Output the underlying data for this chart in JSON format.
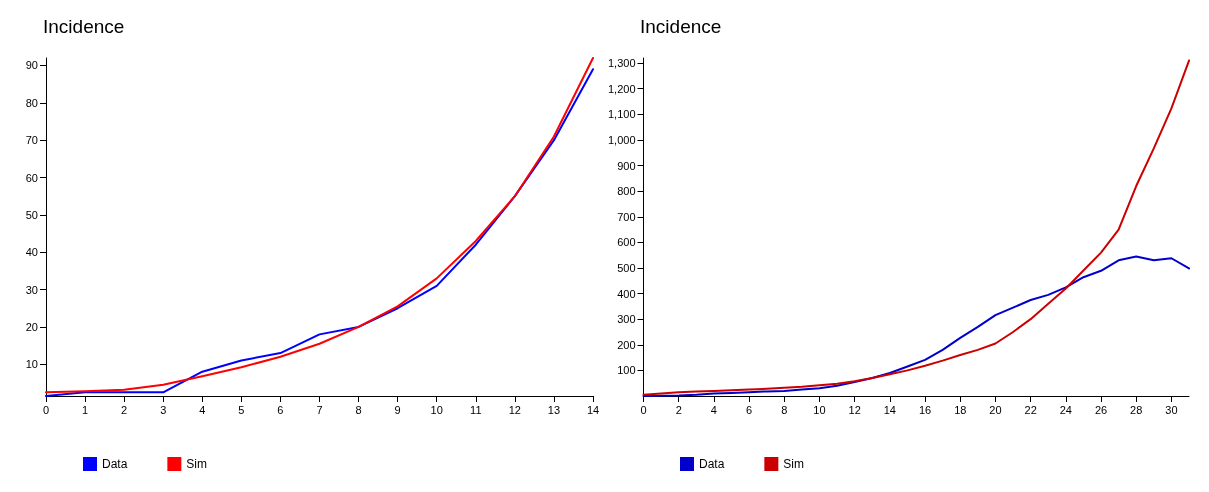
{
  "chart_data": [
    {
      "type": "line",
      "title": "Incidence",
      "x": [
        0,
        1,
        2,
        3,
        4,
        5,
        6,
        7,
        8,
        9,
        10,
        11,
        12,
        13,
        14
      ],
      "xlim": [
        0,
        14
      ],
      "xticks": [
        0,
        1,
        2,
        3,
        4,
        5,
        6,
        7,
        8,
        9,
        10,
        11,
        12,
        13,
        14
      ],
      "ylim": [
        1.5,
        92
      ],
      "yticks": [
        10,
        20,
        30,
        40,
        50,
        60,
        70,
        80,
        90
      ],
      "grid": false,
      "legend": "bottom left",
      "marker": "none",
      "line_style": "solid",
      "series": [
        {
          "name": "Data",
          "color": "#0000ff",
          "values": [
            1.5,
            2.5,
            2.5,
            2.5,
            8,
            11,
            13,
            18,
            20,
            25,
            31,
            42,
            55,
            70,
            89
          ]
        },
        {
          "name": "Sim",
          "color": "#ff0000",
          "values": [
            2.5,
            2.8,
            3.2,
            4.5,
            6.8,
            9.2,
            12,
            15.5,
            20,
            25.5,
            33,
            43,
            55,
            71,
            92
          ]
        }
      ]
    },
    {
      "type": "line",
      "title": "Incidence",
      "x": [
        0,
        1,
        2,
        3,
        4,
        5,
        6,
        7,
        8,
        9,
        10,
        11,
        12,
        13,
        14,
        15,
        16,
        17,
        18,
        19,
        20,
        21,
        22,
        23,
        24,
        25,
        26,
        27,
        28,
        29,
        30,
        31
      ],
      "xlim": [
        0,
        31
      ],
      "xticks": [
        0,
        2,
        4,
        6,
        8,
        10,
        12,
        14,
        16,
        18,
        20,
        22,
        24,
        26,
        28,
        30
      ],
      "ylim": [
        0,
        1320
      ],
      "yticks": [
        {
          "value": 100,
          "label": "100"
        },
        {
          "value": 200,
          "label": "200"
        },
        {
          "value": 300,
          "label": "300"
        },
        {
          "value": 400,
          "label": "400"
        },
        {
          "value": 500,
          "label": "500"
        },
        {
          "value": 600,
          "label": "600"
        },
        {
          "value": 700,
          "label": "700"
        },
        {
          "value": 800,
          "label": "800"
        },
        {
          "value": 900,
          "label": "900"
        },
        {
          "value": 1000,
          "label": "1,000"
        },
        {
          "value": 1100,
          "label": "1,100"
        },
        {
          "value": 1200,
          "label": "1,200"
        },
        {
          "value": 1300,
          "label": "1,300"
        }
      ],
      "grid": false,
      "legend": "bottom left",
      "marker": "none",
      "line_style": "solid",
      "series": [
        {
          "name": "Data",
          "color": "#0000cc",
          "values": [
            0,
            1,
            2,
            5,
            10,
            12,
            15,
            18,
            20,
            25,
            30,
            40,
            55,
            70,
            90,
            115,
            141,
            180,
            227,
            270,
            316,
            345,
            375,
            395,
            424,
            464,
            489,
            530,
            545,
            530,
            538,
            498
          ]
        },
        {
          "name": "Sim",
          "color": "#cc0000",
          "values": [
            5,
            10,
            15,
            18,
            20,
            22,
            25,
            28,
            32,
            36,
            42,
            48,
            58,
            70,
            85,
            100,
            118,
            138,
            160,
            180,
            205,
            250,
            300,
            360,
            420,
            490,
            560,
            650,
            820,
            967,
            1123,
            1310
          ]
        }
      ]
    }
  ]
}
